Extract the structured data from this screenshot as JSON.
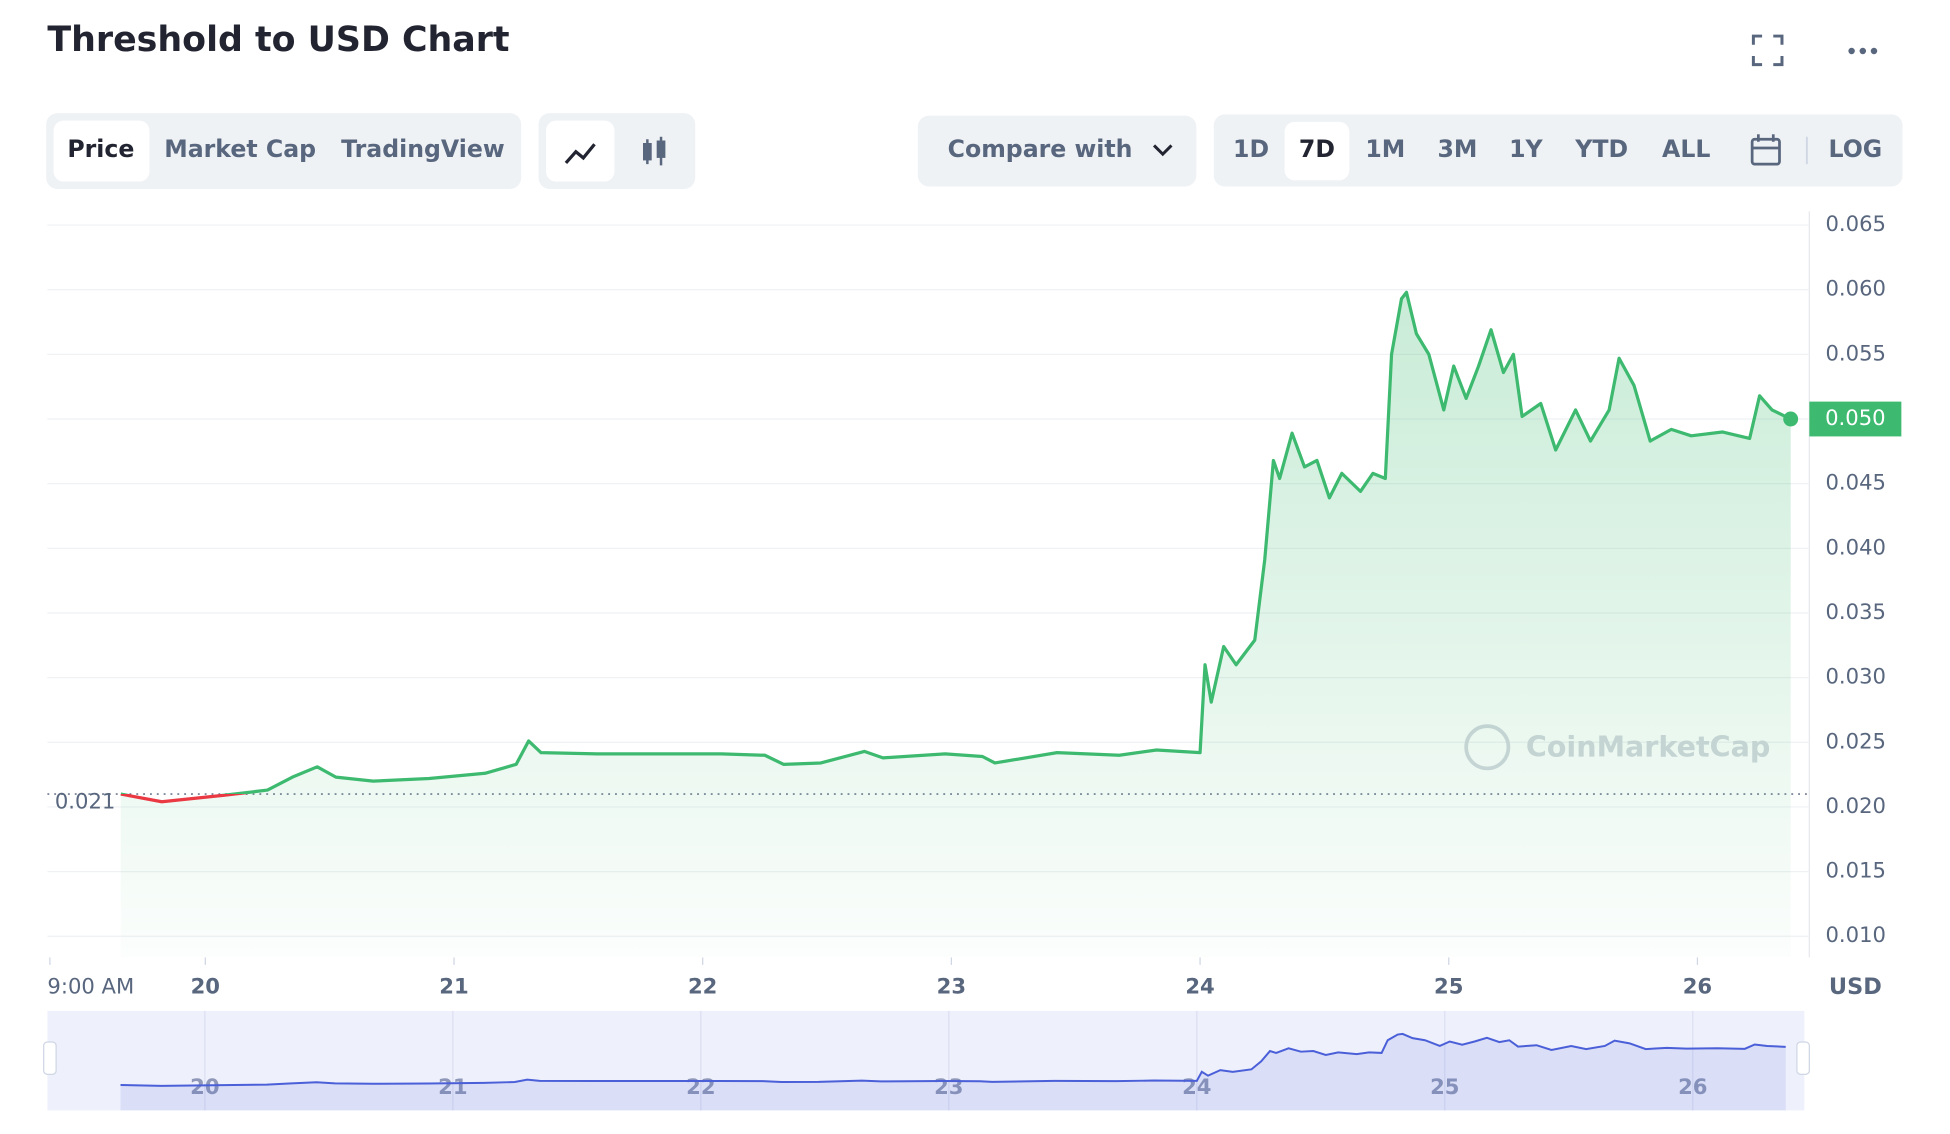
{
  "title": "Threshold to USD Chart",
  "tabs": [
    "Price",
    "Market Cap",
    "TradingView"
  ],
  "compare": "Compare with",
  "ranges": [
    "1D",
    "7D",
    "1M",
    "3M",
    "1Y",
    "YTD",
    "ALL"
  ],
  "log": "LOG",
  "chart_data": {
    "type": "line",
    "x": [
      19.66,
      19.825,
      20.075,
      20.25,
      20.35,
      20.45,
      20.525,
      20.675,
      20.9,
      21.125,
      21.25,
      21.3,
      21.35,
      21.575,
      21.825,
      22.075,
      22.25,
      22.325,
      22.475,
      22.65,
      22.725,
      22.975,
      23.125,
      23.175,
      23.425,
      23.675,
      23.825,
      24.0,
      24.02,
      24.045,
      24.095,
      24.145,
      24.22,
      24.26,
      24.295,
      24.32,
      24.37,
      24.42,
      24.47,
      24.52,
      24.57,
      24.645,
      24.695,
      24.745,
      24.77,
      24.81,
      24.83,
      24.87,
      24.92,
      24.98,
      25.02,
      25.07,
      25.12,
      25.17,
      25.22,
      25.26,
      25.295,
      25.37,
      25.43,
      25.51,
      25.57,
      25.645,
      25.685,
      25.745,
      25.81,
      25.895,
      25.975,
      26.1,
      26.21,
      26.25,
      26.3,
      26.375
    ],
    "series": [
      {
        "name": "Price",
        "color": "#3dba6f",
        "values": [
          0.021,
          0.0204,
          0.0209,
          0.0213,
          0.0223,
          0.0231,
          0.0223,
          0.022,
          0.0222,
          0.0226,
          0.0233,
          0.0251,
          0.0242,
          0.0241,
          0.0241,
          0.0241,
          0.024,
          0.0233,
          0.0234,
          0.0243,
          0.0238,
          0.0241,
          0.0239,
          0.0234,
          0.0242,
          0.024,
          0.0244,
          0.0242,
          0.031,
          0.0281,
          0.0324,
          0.031,
          0.0329,
          0.0391,
          0.0468,
          0.0454,
          0.0489,
          0.0463,
          0.0468,
          0.0439,
          0.0458,
          0.0444,
          0.0458,
          0.0454,
          0.055,
          0.0593,
          0.0598,
          0.0566,
          0.055,
          0.0507,
          0.0541,
          0.0516,
          0.0541,
          0.0569,
          0.0536,
          0.055,
          0.0502,
          0.0512,
          0.0476,
          0.0507,
          0.0483,
          0.0507,
          0.0547,
          0.0526,
          0.0483,
          0.0492,
          0.0487,
          0.049,
          0.0485,
          0.0518,
          0.0507,
          0.05
        ]
      }
    ],
    "down_color": "#ea3943",
    "start_price": 0.021,
    "last_price": {
      "value": 0.05,
      "label": "0.050"
    },
    "xlim": [
      19.365,
      26.45
    ],
    "xticks": [
      {
        "value": 19.375,
        "label": "9:00 AM"
      },
      20,
      21,
      22,
      23,
      24,
      25,
      26
    ],
    "ylim": [
      0.0084,
      0.065
    ],
    "yticks": [
      0.065,
      {
        "value": 0.06,
        "label": "0.060"
      },
      0.055,
      {
        "value": 0.05,
        "label": "0.050"
      },
      0.045,
      {
        "value": 0.04,
        "label": "0.040"
      },
      0.035,
      {
        "value": 0.03,
        "label": "0.030"
      },
      0.025,
      {
        "value": 0.02,
        "label": "0.020"
      },
      0.015,
      {
        "value": 0.01,
        "label": "0.010"
      }
    ],
    "y_unit": "USD",
    "grid": true,
    "watermark": "CoinMarketCap",
    "navigator_color": "#4a5fd8"
  }
}
